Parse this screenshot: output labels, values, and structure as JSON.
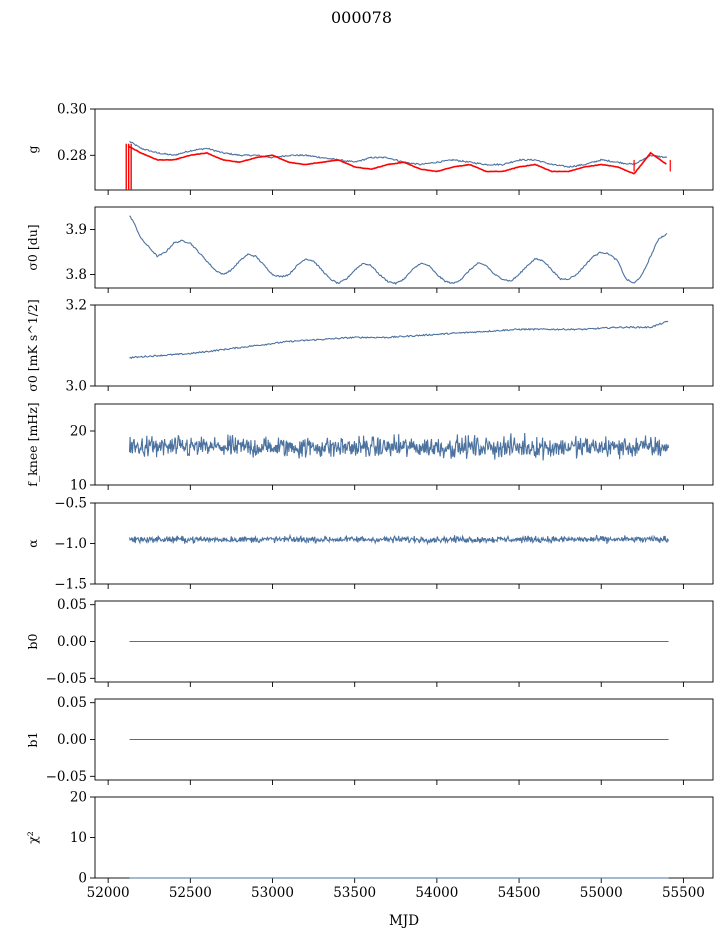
{
  "title": "000078",
  "xlabel": "MJD",
  "x_ticks": [
    52000,
    52500,
    53000,
    53500,
    54000,
    54500,
    55000,
    55500
  ],
  "colors": {
    "series": "#4c72a0",
    "fit": "#ff0000",
    "axes": "#000000"
  },
  "chart_data": [
    {
      "type": "line",
      "id": "g",
      "ylabel": "g",
      "ylim": [
        0.265,
        0.3
      ],
      "yticks": [
        0.28,
        0.3
      ],
      "xlim": [
        51920,
        55680
      ],
      "series": [
        {
          "color": "#4c72a0",
          "x_range": [
            52130,
            55410
          ],
          "x": [
            52130,
            52200,
            52300,
            52400,
            52500,
            52600,
            52700,
            52800,
            52900,
            53000,
            53100,
            53200,
            53300,
            53400,
            53500,
            53600,
            53700,
            53800,
            53900,
            54000,
            54100,
            54200,
            54300,
            54400,
            54500,
            54600,
            54700,
            54800,
            54900,
            55000,
            55100,
            55200,
            55300,
            55400
          ],
          "y": [
            0.286,
            0.283,
            0.281,
            0.28,
            0.282,
            0.283,
            0.281,
            0.28,
            0.28,
            0.279,
            0.28,
            0.28,
            0.279,
            0.278,
            0.277,
            0.279,
            0.279,
            0.277,
            0.276,
            0.277,
            0.278,
            0.277,
            0.276,
            0.276,
            0.278,
            0.278,
            0.276,
            0.275,
            0.276,
            0.278,
            0.277,
            0.276,
            0.28,
            0.279
          ]
        },
        {
          "color": "#ff0000",
          "x_range": [
            52120,
            55410
          ],
          "x": [
            52120,
            52200,
            52300,
            52400,
            52500,
            52600,
            52700,
            52800,
            52900,
            53000,
            53100,
            53200,
            53300,
            53400,
            53500,
            53600,
            53700,
            53800,
            53900,
            54000,
            54100,
            54200,
            54300,
            54400,
            54500,
            54600,
            54700,
            54800,
            54900,
            55000,
            55100,
            55200,
            55300,
            55400
          ],
          "y": [
            0.284,
            0.281,
            0.278,
            0.278,
            0.28,
            0.281,
            0.278,
            0.277,
            0.279,
            0.28,
            0.277,
            0.276,
            0.277,
            0.278,
            0.275,
            0.274,
            0.276,
            0.277,
            0.274,
            0.273,
            0.275,
            0.276,
            0.273,
            0.273,
            0.275,
            0.276,
            0.273,
            0.273,
            0.275,
            0.276,
            0.275,
            0.272,
            0.281,
            0.276
          ]
        }
      ]
    },
    {
      "type": "line",
      "id": "sigma0-du",
      "ylabel": "σ0 [du]",
      "ylim": [
        3.77,
        3.95
      ],
      "yticks": [
        3.8,
        3.9
      ],
      "xlim": [
        51920,
        55680
      ],
      "series": [
        {
          "color": "#4c72a0",
          "x": [
            52130,
            52150,
            52200,
            52250,
            52300,
            52350,
            52400,
            52450,
            52500,
            52550,
            52600,
            52650,
            52700,
            52750,
            52800,
            52850,
            52900,
            52950,
            53000,
            53050,
            53100,
            53150,
            53200,
            53250,
            53300,
            53350,
            53400,
            53450,
            53500,
            53550,
            53600,
            53650,
            53700,
            53750,
            53800,
            53850,
            53900,
            53950,
            54000,
            54050,
            54100,
            54150,
            54200,
            54250,
            54300,
            54350,
            54400,
            54450,
            54500,
            54550,
            54600,
            54650,
            54700,
            54750,
            54800,
            54850,
            54900,
            54950,
            55000,
            55050,
            55100,
            55150,
            55200,
            55250,
            55300,
            55350,
            55400
          ],
          "y": [
            3.93,
            3.92,
            3.88,
            3.86,
            3.84,
            3.85,
            3.87,
            3.875,
            3.87,
            3.85,
            3.83,
            3.81,
            3.8,
            3.81,
            3.83,
            3.845,
            3.84,
            3.82,
            3.8,
            3.795,
            3.8,
            3.82,
            3.835,
            3.83,
            3.81,
            3.79,
            3.78,
            3.79,
            3.81,
            3.825,
            3.82,
            3.8,
            3.785,
            3.78,
            3.79,
            3.81,
            3.825,
            3.82,
            3.8,
            3.785,
            3.78,
            3.79,
            3.81,
            3.825,
            3.82,
            3.8,
            3.79,
            3.785,
            3.8,
            3.82,
            3.835,
            3.83,
            3.81,
            3.79,
            3.79,
            3.8,
            3.82,
            3.84,
            3.85,
            3.845,
            3.83,
            3.79,
            3.78,
            3.8,
            3.84,
            3.88,
            3.89
          ]
        }
      ]
    },
    {
      "type": "line",
      "id": "sigma0-mk",
      "ylabel": "σ0 [mK s^1/2]",
      "ylim": [
        3.0,
        3.2
      ],
      "yticks": [
        3.0,
        3.2
      ],
      "xlim": [
        51920,
        55680
      ],
      "series": [
        {
          "color": "#4c72a0",
          "x": [
            52130,
            52300,
            52500,
            52700,
            52900,
            53100,
            53300,
            53500,
            53700,
            53900,
            54100,
            54300,
            54500,
            54700,
            54900,
            55100,
            55300,
            55410
          ],
          "y": [
            3.07,
            3.075,
            3.08,
            3.09,
            3.1,
            3.11,
            3.115,
            3.12,
            3.12,
            3.125,
            3.13,
            3.135,
            3.14,
            3.14,
            3.14,
            3.145,
            3.145,
            3.16
          ]
        }
      ]
    },
    {
      "type": "line",
      "id": "fknee",
      "ylabel": "f_knee [mHz]",
      "ylim": [
        10,
        25
      ],
      "yticks": [
        10,
        20
      ],
      "xlim": [
        51920,
        55680
      ],
      "series": [
        {
          "color": "#4c72a0",
          "x_range": [
            52130,
            55410
          ],
          "mean": 17,
          "spread": 1.5
        }
      ]
    },
    {
      "type": "line",
      "id": "alpha",
      "ylabel": "α",
      "ylim": [
        -1.5,
        -0.5
      ],
      "yticks": [
        -1.5,
        -1.0,
        -0.5
      ],
      "xlim": [
        51920,
        55680
      ],
      "series": [
        {
          "color": "#4c72a0",
          "x_range": [
            52130,
            55410
          ],
          "mean": -0.95,
          "spread": 0.03
        }
      ]
    },
    {
      "type": "line",
      "id": "b0",
      "ylabel": "b0",
      "ylim": [
        -0.055,
        0.055
      ],
      "yticks": [
        -0.05,
        0.0,
        0.05
      ],
      "xlim": [
        51920,
        55680
      ],
      "series": [
        {
          "color": "#4c72a0",
          "x": [
            52130,
            55410
          ],
          "y": [
            0.0,
            0.0
          ]
        }
      ]
    },
    {
      "type": "line",
      "id": "b1",
      "ylabel": "b1",
      "ylim": [
        -0.055,
        0.055
      ],
      "yticks": [
        -0.05,
        0.0,
        0.05
      ],
      "xlim": [
        51920,
        55680
      ],
      "series": [
        {
          "color": "#4c72a0",
          "x": [
            52130,
            55410
          ],
          "y": [
            0.0,
            0.0
          ]
        }
      ]
    },
    {
      "type": "line",
      "id": "chi2",
      "ylabel": "χ²",
      "ylim": [
        0,
        20
      ],
      "yticks": [
        0,
        10,
        20
      ],
      "xlim": [
        51920,
        55680
      ],
      "series": [
        {
          "color": "#4c72a0",
          "x": [
            52130,
            55410
          ],
          "y": [
            0.0,
            0.0
          ]
        }
      ]
    }
  ]
}
